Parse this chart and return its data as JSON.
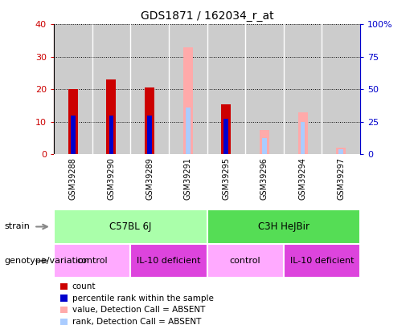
{
  "title": "GDS1871 / 162034_r_at",
  "samples": [
    "GSM39288",
    "GSM39290",
    "GSM39289",
    "GSM39291",
    "GSM39295",
    "GSM39296",
    "GSM39294",
    "GSM39297"
  ],
  "count_values": [
    20,
    23,
    20.5,
    0,
    15.5,
    0,
    0,
    0
  ],
  "rank_values": [
    12,
    12,
    12,
    0,
    11,
    0,
    0,
    0
  ],
  "absent_value": [
    0,
    0,
    0,
    33,
    0,
    7.5,
    13,
    2
  ],
  "absent_rank": [
    0,
    0,
    0,
    14.5,
    0,
    5,
    10,
    1.5
  ],
  "count_color": "#cc0000",
  "rank_color": "#0000cc",
  "absent_value_color": "#ffaaaa",
  "absent_rank_color": "#aaccff",
  "ylim_left": [
    0,
    40
  ],
  "ylim_right": [
    0,
    100
  ],
  "yticks_left": [
    0,
    10,
    20,
    30,
    40
  ],
  "ytick_labels_left": [
    "0",
    "10",
    "20",
    "30",
    "40"
  ],
  "yticks_right": [
    0,
    25,
    50,
    75,
    100
  ],
  "ytick_labels_right": [
    "0",
    "25",
    "50",
    "75",
    "100%"
  ],
  "strain_groups": [
    {
      "text": "C57BL 6J",
      "start": 0,
      "end": 3,
      "color": "#aaffaa"
    },
    {
      "text": "C3H HeJBir",
      "start": 4,
      "end": 7,
      "color": "#55dd55"
    }
  ],
  "geno_groups": [
    {
      "text": "control",
      "start": 0,
      "end": 1,
      "color": "#ffaaff"
    },
    {
      "text": "IL-10 deficient",
      "start": 2,
      "end": 3,
      "color": "#dd44dd"
    },
    {
      "text": "control",
      "start": 4,
      "end": 5,
      "color": "#ffaaff"
    },
    {
      "text": "IL-10 deficient",
      "start": 6,
      "end": 7,
      "color": "#dd44dd"
    }
  ],
  "legend_items": [
    {
      "label": "count",
      "color": "#cc0000"
    },
    {
      "label": "percentile rank within the sample",
      "color": "#0000cc"
    },
    {
      "label": "value, Detection Call = ABSENT",
      "color": "#ffaaaa"
    },
    {
      "label": "rank, Detection Call = ABSENT",
      "color": "#aaccff"
    }
  ],
  "bar_width": 0.25,
  "rank_bar_width": 0.12,
  "row_label_strain": "strain",
  "row_label_geno": "genotype/variation",
  "bg_color": "#cccccc",
  "xticklabel_area_color": "#cccccc"
}
